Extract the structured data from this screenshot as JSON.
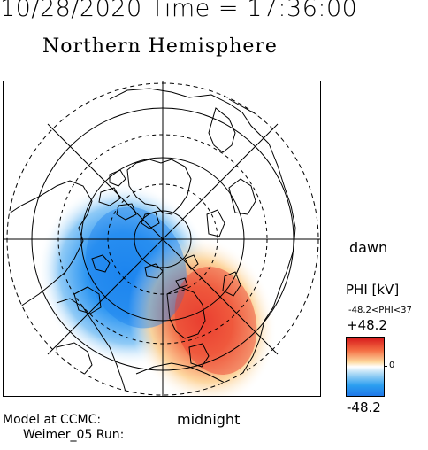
{
  "header": {
    "text": "10/28/2020 Time = 17:36:00"
  },
  "plot": {
    "title": "Northern Hemisphere",
    "dawn_label": "dawn",
    "midnight_label": "midnight"
  },
  "colorbar": {
    "label": "PHI [kV]",
    "range_text": "-48.2<PHI<37",
    "max": "+48.2",
    "zero": "0",
    "min": "-48.2",
    "colors": {
      "max": "#d7191c",
      "mid": "#ffffff",
      "min": "#1f78e8"
    }
  },
  "footer": {
    "model_line_1": "Model at CCMC:",
    "model_line_2": "Weimer_05 Run:"
  }
}
